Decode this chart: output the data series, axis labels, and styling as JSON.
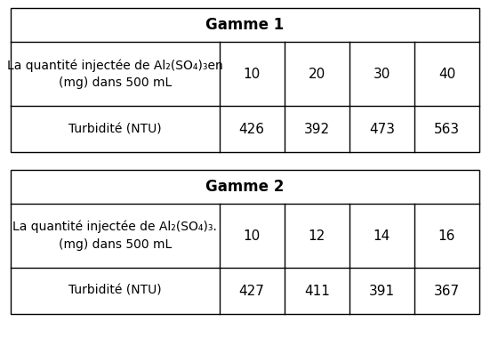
{
  "table1_title": "Gamme 1",
  "table1_row1_label_line1": "La quantité injectée de Al₂(SO₄)₃en",
  "table1_row1_label_line2": "(mg) dans 500 mL",
  "table1_row1_values": [
    "10",
    "20",
    "30",
    "40"
  ],
  "table1_row2_label": "Turbidité (NTU)",
  "table1_row2_values": [
    "426",
    "392",
    "473",
    "563"
  ],
  "table2_title": "Gamme 2",
  "table2_row1_label_line1": "La quantité injectée de Al₂(SO₄)₃.",
  "table2_row1_label_line2": "(mg) dans 500 mL",
  "table2_row1_values": [
    "10",
    "12",
    "14",
    "16"
  ],
  "table2_row2_label": "Turbidité (NTU)",
  "table2_row2_values": [
    "427",
    "411",
    "391",
    "367"
  ],
  "bg_color": "#ffffff",
  "border_color": "#000000",
  "title_fontsize": 12,
  "cell_fontsize": 11,
  "label_fontsize": 10
}
